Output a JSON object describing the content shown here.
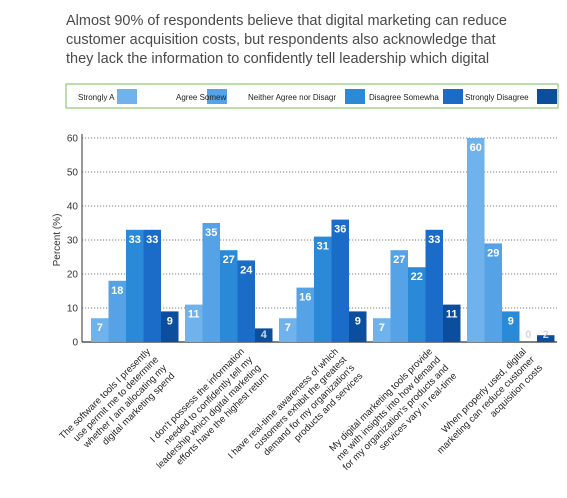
{
  "title_lines": [
    "Almost 90% of respondents believe that digital marketing can reduce",
    "customer acquisition costs, but respondents also acknowledge that",
    "they lack the information to confidently tell leadership which digital"
  ],
  "chart_data": {
    "type": "bar",
    "ylabel": "Percent (%)",
    "xlabel": "",
    "ylim": [
      0,
      60
    ],
    "yticks": [
      0,
      10,
      20,
      30,
      40,
      50,
      60
    ],
    "grid": true,
    "legend_position": "top",
    "categories": [
      [
        "The software tools I presently",
        "use permit me to determine",
        "whether I am allocating my",
        "digital marketing spend"
      ],
      [
        "I don't possess the information",
        "needed to confidently tell my",
        "leadership which digital marketing",
        "efforts have the highest return"
      ],
      [
        "I have real-time awareness of which",
        "customers exhibit the greatest",
        "demand for my organization's",
        "products and services"
      ],
      [
        "My digital marketing tools provide",
        "me with insights into how demand",
        "for my organization's products and",
        "services vary in real-time"
      ],
      [
        "When properly used, digital",
        "marketing can reduce customer",
        "acquisition costs"
      ]
    ],
    "series": [
      {
        "name": "Strongly Agree",
        "legend_text": "Strongly A",
        "color": "#6fb2ec",
        "values": [
          7,
          11,
          7,
          7,
          60
        ]
      },
      {
        "name": "Agree Somewhat",
        "legend_text": "Agree Somew",
        "color": "#55a3e6",
        "values": [
          18,
          35,
          16,
          27,
          29
        ]
      },
      {
        "name": "Neither Agree nor Disagree",
        "legend_text": "Neither Agree nor Disagr",
        "color": "#2a8ad8",
        "values": [
          33,
          27,
          31,
          22,
          9
        ]
      },
      {
        "name": "Disagree Somewhat",
        "legend_text": "Disagree Somewha",
        "color": "#1b6cc8",
        "values": [
          33,
          24,
          36,
          33,
          0
        ]
      },
      {
        "name": "Strongly Disagree",
        "legend_text": "Strongly Disagree",
        "color": "#0c4e9e",
        "values": [
          9,
          4,
          9,
          11,
          2
        ]
      }
    ]
  }
}
